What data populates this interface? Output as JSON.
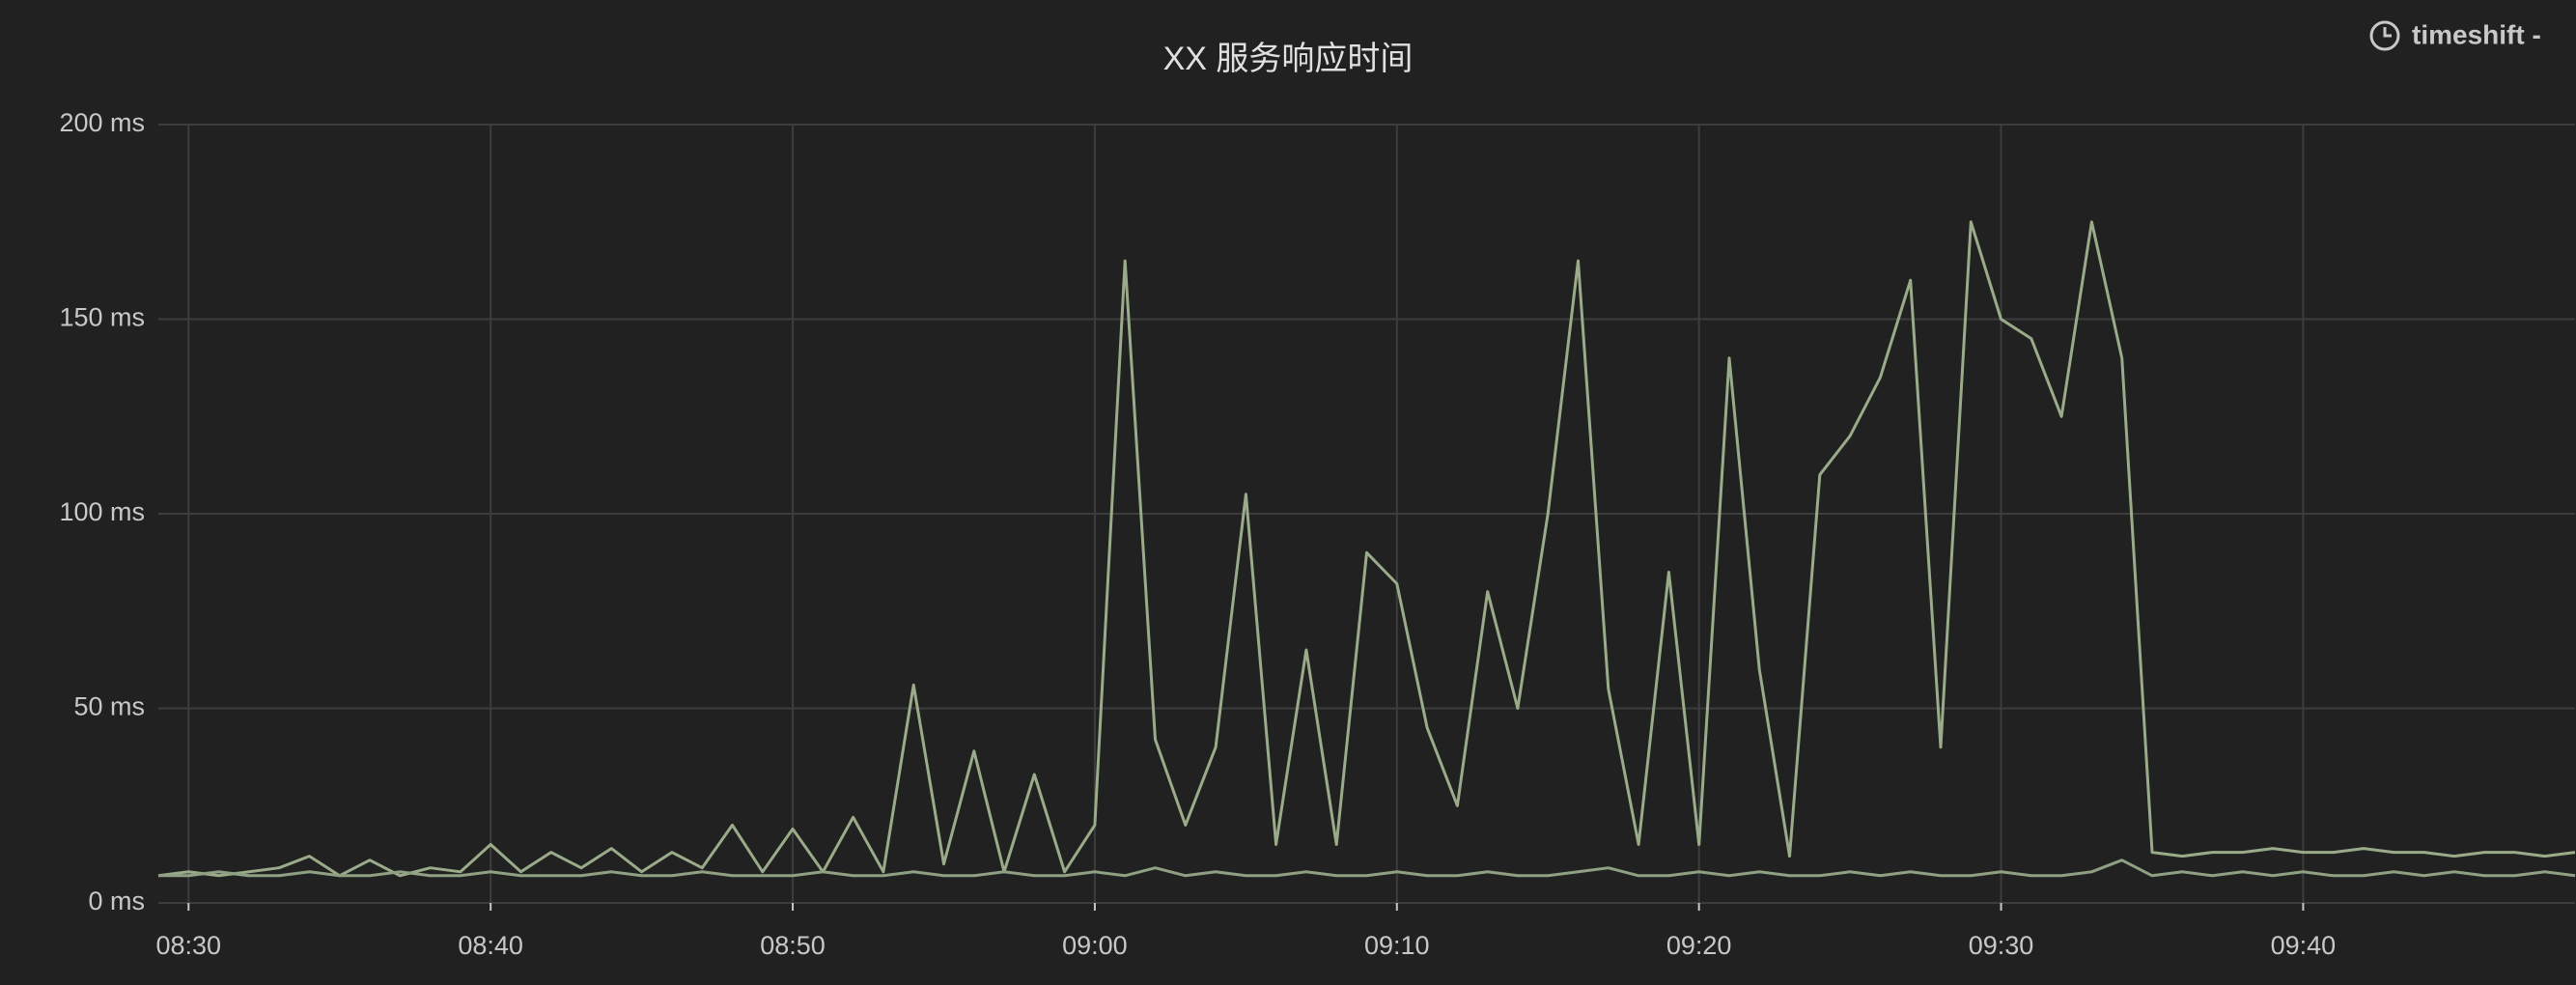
{
  "chart_data": {
    "type": "line",
    "title": "XX 服务响应时间",
    "annotation": "timeshift -",
    "x": [
      "08:29",
      "08:30",
      "08:31",
      "08:32",
      "08:33",
      "08:34",
      "08:35",
      "08:36",
      "08:37",
      "08:38",
      "08:39",
      "08:40",
      "08:41",
      "08:42",
      "08:43",
      "08:44",
      "08:45",
      "08:46",
      "08:47",
      "08:48",
      "08:49",
      "08:50",
      "08:51",
      "08:52",
      "08:53",
      "08:54",
      "08:55",
      "08:56",
      "08:57",
      "08:58",
      "08:59",
      "09:00",
      "09:01",
      "09:02",
      "09:03",
      "09:04",
      "09:05",
      "09:06",
      "09:07",
      "09:08",
      "09:09",
      "09:10",
      "09:11",
      "09:12",
      "09:13",
      "09:14",
      "09:15",
      "09:16",
      "09:17",
      "09:18",
      "09:19",
      "09:20",
      "09:21",
      "09:22",
      "09:23",
      "09:24",
      "09:25",
      "09:26",
      "09:27",
      "09:28",
      "09:29",
      "09:30",
      "09:31",
      "09:32",
      "09:33",
      "09:34",
      "09:35",
      "09:36",
      "09:37",
      "09:38",
      "09:39",
      "09:40",
      "09:41",
      "09:42",
      "09:43",
      "09:44",
      "09:45",
      "09:46",
      "09:47",
      "09:48",
      "09:49"
    ],
    "series": [
      {
        "color": "#9aab8a",
        "values": [
          7,
          8,
          7,
          8,
          9,
          12,
          7,
          11,
          7,
          9,
          8,
          15,
          8,
          13,
          9,
          14,
          8,
          13,
          9,
          20,
          8,
          19,
          8,
          22,
          8,
          56,
          10,
          39,
          8,
          33,
          8,
          20,
          165,
          42,
          20,
          40,
          105,
          15,
          65,
          15,
          90,
          82,
          45,
          25,
          80,
          50,
          100,
          165,
          55,
          15,
          85,
          15,
          140,
          60,
          12,
          110,
          120,
          135,
          160,
          40,
          175,
          150,
          145,
          125,
          175,
          140,
          13,
          12,
          13,
          13,
          14,
          13,
          13,
          14,
          13,
          13,
          12,
          13,
          13,
          12,
          13
        ]
      },
      {
        "color": "#8fa083",
        "values": [
          7,
          7,
          8,
          7,
          7,
          8,
          7,
          7,
          8,
          7,
          7,
          8,
          7,
          7,
          7,
          8,
          7,
          7,
          8,
          7,
          7,
          7,
          8,
          7,
          7,
          8,
          7,
          7,
          8,
          7,
          7,
          8,
          7,
          9,
          7,
          8,
          7,
          7,
          8,
          7,
          7,
          8,
          7,
          7,
          8,
          7,
          7,
          8,
          9,
          7,
          7,
          8,
          7,
          8,
          7,
          7,
          8,
          7,
          8,
          7,
          7,
          8,
          7,
          7,
          8,
          11,
          7,
          8,
          7,
          8,
          7,
          8,
          7,
          7,
          8,
          7,
          8,
          7,
          7,
          8,
          7
        ]
      }
    ],
    "xlim": [
      "08:29",
      "09:49"
    ],
    "xticks": [
      "08:30",
      "08:40",
      "08:50",
      "09:00",
      "09:10",
      "09:20",
      "09:30",
      "09:40"
    ],
    "ylim": [
      0,
      200
    ],
    "yticks": [
      {
        "value": 0,
        "label": "0 ms"
      },
      {
        "value": 50,
        "label": "50 ms"
      },
      {
        "value": 100,
        "label": "100 ms"
      },
      {
        "value": 150,
        "label": "150 ms"
      },
      {
        "value": 200,
        "label": "200 ms"
      }
    ],
    "grid": true
  }
}
